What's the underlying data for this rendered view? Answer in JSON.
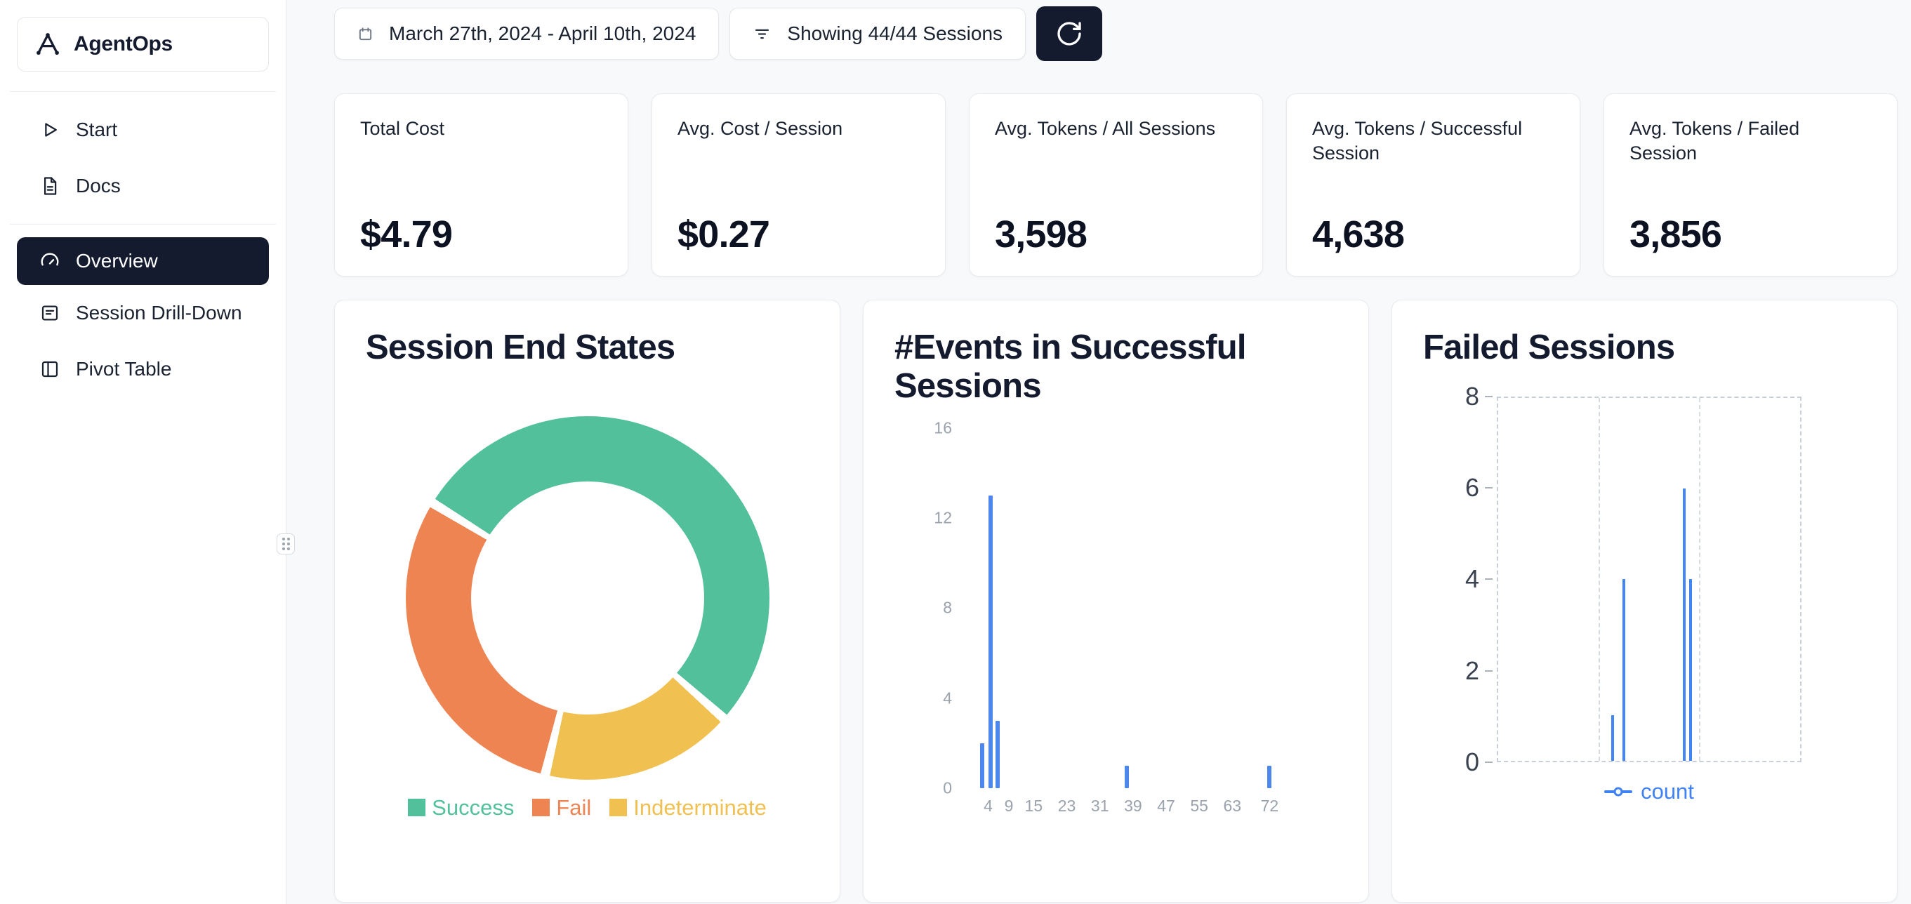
{
  "app": {
    "name": "AgentOps"
  },
  "colors": {
    "accent_dark": "#141b2f",
    "bar_blue": "#4d86ec",
    "spike_blue": "#4285f4",
    "count_blue": "#3f82f5",
    "success_green": "#52c19b",
    "fail_orange": "#ee8452",
    "indeterminate_yellow": "#f0c051"
  },
  "sidebar": {
    "items_top": [
      {
        "label": "Start"
      },
      {
        "label": "Docs"
      }
    ],
    "items_nav": [
      {
        "label": "Overview",
        "active": true
      },
      {
        "label": "Session Drill-Down",
        "active": false
      },
      {
        "label": "Pivot Table",
        "active": false
      }
    ]
  },
  "toolbar": {
    "date_range": "March 27th, 2024 - April 10th, 2024",
    "sessions_filter": "Showing 44/44 Sessions"
  },
  "stats": [
    {
      "label": "Total Cost",
      "value": "$4.79"
    },
    {
      "label": "Avg. Cost / Session",
      "value": "$0.27"
    },
    {
      "label": "Avg. Tokens / All Sessions",
      "value": "3,598"
    },
    {
      "label": "Avg. Tokens / Successful Session",
      "value": "4,638"
    },
    {
      "label": "Avg. Tokens / Failed Session",
      "value": "3,856"
    }
  ],
  "chart_data": [
    {
      "type": "pie",
      "title": "Session End States",
      "donut": true,
      "start_angle_deg": -57,
      "gap_degrees": 3,
      "segments": [
        {
          "label": "Success",
          "sweep_degrees": 187,
          "color": "#52c19b"
        },
        {
          "label": "Indeterminate",
          "sweep_degrees": 59,
          "color": "#f0c051"
        },
        {
          "label": "Fail",
          "sweep_degrees": 105,
          "color": "#ee8452"
        }
      ],
      "legend": [
        {
          "label": "Success",
          "color": "#52c19b"
        },
        {
          "label": "Fail",
          "color": "#ee8452"
        },
        {
          "label": "Indeterminate",
          "color": "#f0c051"
        }
      ],
      "legend_position": "bottom"
    },
    {
      "type": "bar",
      "title": "#Events in Successful Sessions",
      "x_ticks": [
        4,
        9,
        15,
        23,
        31,
        39,
        47,
        55,
        63,
        72
      ],
      "y_ticks": [
        0,
        4,
        8,
        12,
        16
      ],
      "x_range": [
        0,
        75.5
      ],
      "ylim": [
        0,
        16
      ],
      "grid": false,
      "bars": [
        {
          "x": 2.5,
          "count": 2
        },
        {
          "x": 4.6,
          "count": 13
        },
        {
          "x": 6.2,
          "count": 3
        },
        {
          "x": 37.5,
          "count": 1
        },
        {
          "x": 72,
          "count": 1
        }
      ]
    },
    {
      "type": "line",
      "title": "Failed Sessions",
      "y_ticks": [
        0,
        2,
        4,
        6,
        8
      ],
      "ylim": [
        0,
        8
      ],
      "series_name": "count",
      "spikes": [
        {
          "x_pct": 38,
          "count": 1
        },
        {
          "x_pct": 41.7,
          "count": 4
        },
        {
          "x_pct": 61.7,
          "count": 6
        },
        {
          "x_pct": 63.8,
          "count": 4
        }
      ],
      "grid_vlines_pct": [
        33.3,
        66.6
      ],
      "legend_position": "bottom"
    }
  ]
}
